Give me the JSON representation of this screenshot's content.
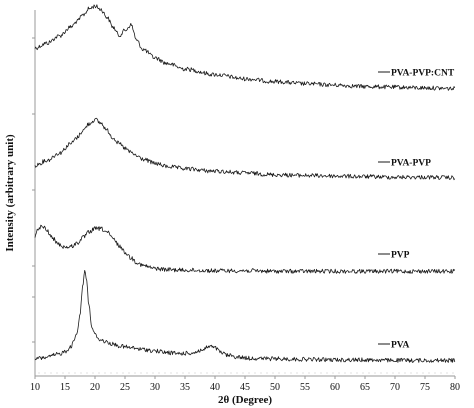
{
  "chart_data": {
    "type": "line",
    "title": "",
    "xlabel": "2θ (Degree)",
    "ylabel": "Intensity (arbitrary unit)",
    "xlim": [
      10,
      80
    ],
    "x_ticks": [
      10,
      15,
      20,
      25,
      30,
      35,
      40,
      45,
      50,
      55,
      60,
      65,
      70,
      75,
      80
    ],
    "grid": false,
    "legend_placement": "right, beside each curve",
    "line_color": "#1a1a1a",
    "series": [
      {
        "name": "PVA-PVP:CNT",
        "x": [
          10,
          12,
          14,
          16,
          17,
          18,
          19,
          20,
          21,
          22,
          23,
          24,
          25,
          26,
          27,
          28,
          30,
          32,
          35,
          40,
          45,
          50,
          55,
          60,
          65,
          70,
          75,
          80
        ],
        "y": [
          0.8,
          0.87,
          0.97,
          1.1,
          1.18,
          1.27,
          1.36,
          1.4,
          1.35,
          1.24,
          1.1,
          0.98,
          1.05,
          1.13,
          0.9,
          0.78,
          0.66,
          0.58,
          0.5,
          0.42,
          0.36,
          0.32,
          0.29,
          0.27,
          0.25,
          0.24,
          0.23,
          0.22
        ]
      },
      {
        "name": "PVA-PVP",
        "x": [
          10,
          12,
          14,
          16,
          17,
          18,
          19,
          20,
          21,
          22,
          23,
          24,
          25,
          26,
          27,
          28,
          30,
          32,
          35,
          40,
          45,
          50,
          55,
          60,
          65,
          70,
          75,
          80
        ],
        "y": [
          0.38,
          0.46,
          0.58,
          0.74,
          0.84,
          0.96,
          1.07,
          1.14,
          1.08,
          0.96,
          0.84,
          0.74,
          0.66,
          0.59,
          0.53,
          0.48,
          0.41,
          0.36,
          0.32,
          0.28,
          0.25,
          0.22,
          0.21,
          0.2,
          0.19,
          0.18,
          0.18,
          0.17
        ]
      },
      {
        "name": "PVP",
        "x": [
          10,
          10.5,
          11,
          11.5,
          12,
          13,
          14,
          15,
          16,
          17,
          18,
          19,
          20,
          21,
          22,
          23,
          24,
          25,
          26,
          27,
          28,
          30,
          32,
          35,
          40,
          45,
          50,
          55,
          60,
          65,
          70,
          75,
          80
        ],
        "y": [
          0.74,
          0.86,
          0.92,
          0.9,
          0.84,
          0.7,
          0.6,
          0.55,
          0.56,
          0.62,
          0.72,
          0.82,
          0.88,
          0.88,
          0.82,
          0.7,
          0.58,
          0.46,
          0.36,
          0.28,
          0.22,
          0.17,
          0.15,
          0.14,
          0.13,
          0.13,
          0.12,
          0.12,
          0.12,
          0.12,
          0.12,
          0.12,
          0.12
        ]
      },
      {
        "name": "PVA",
        "x": [
          10,
          12,
          14,
          15,
          16,
          17,
          17.5,
          18,
          18.3,
          18.6,
          19,
          19.5,
          20,
          21,
          22,
          23,
          24,
          25,
          26,
          28,
          30,
          32,
          34,
          36,
          38,
          39,
          40,
          41,
          42,
          44,
          46,
          50,
          55,
          60,
          65,
          70,
          75,
          80
        ],
        "y": [
          0.1,
          0.13,
          0.19,
          0.24,
          0.34,
          0.58,
          0.98,
          1.55,
          1.8,
          1.62,
          1.1,
          0.7,
          0.56,
          0.46,
          0.42,
          0.38,
          0.35,
          0.33,
          0.31,
          0.28,
          0.25,
          0.22,
          0.2,
          0.21,
          0.27,
          0.34,
          0.31,
          0.22,
          0.17,
          0.13,
          0.11,
          0.1,
          0.09,
          0.08,
          0.08,
          0.07,
          0.07,
          0.07
        ]
      }
    ]
  }
}
